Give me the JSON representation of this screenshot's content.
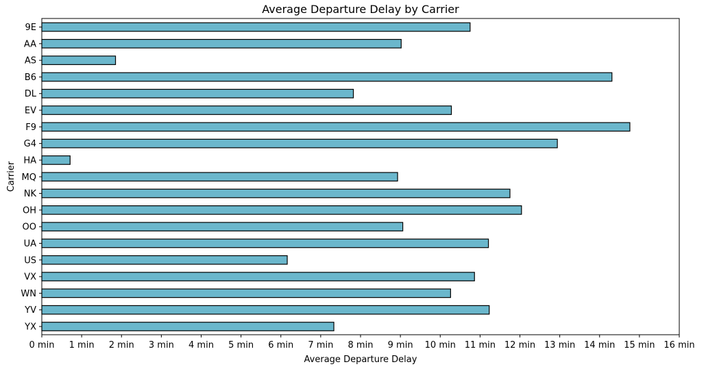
{
  "chart_data": {
    "type": "bar",
    "orientation": "horizontal",
    "title": "Average Departure Delay by Carrier",
    "xlabel": "Average Departure Delay",
    "ylabel": "Carrier",
    "xlim": [
      0,
      16
    ],
    "x_ticks": [
      0,
      1,
      2,
      3,
      4,
      5,
      6,
      7,
      8,
      9,
      10,
      11,
      12,
      13,
      14,
      15,
      16
    ],
    "x_tick_labels": [
      "0 min",
      "1 min",
      "2 min",
      "3 min",
      "4 min",
      "5 min",
      "6 min",
      "7 min",
      "8 min",
      "9 min",
      "10 min",
      "11 min",
      "12 min",
      "13 min",
      "14 min",
      "15 min",
      "16 min"
    ],
    "categories": [
      "9E",
      "AA",
      "AS",
      "B6",
      "DL",
      "EV",
      "F9",
      "G4",
      "HA",
      "MQ",
      "NK",
      "OH",
      "OO",
      "UA",
      "US",
      "VX",
      "WN",
      "YV",
      "YX"
    ],
    "values": [
      10.75,
      9.02,
      1.85,
      14.31,
      7.82,
      10.28,
      14.76,
      12.94,
      0.71,
      8.93,
      11.75,
      12.04,
      9.06,
      11.21,
      6.16,
      10.86,
      10.26,
      11.23,
      7.33
    ],
    "bar_color": "#6bb7cc",
    "grid": false,
    "legend": "none"
  }
}
